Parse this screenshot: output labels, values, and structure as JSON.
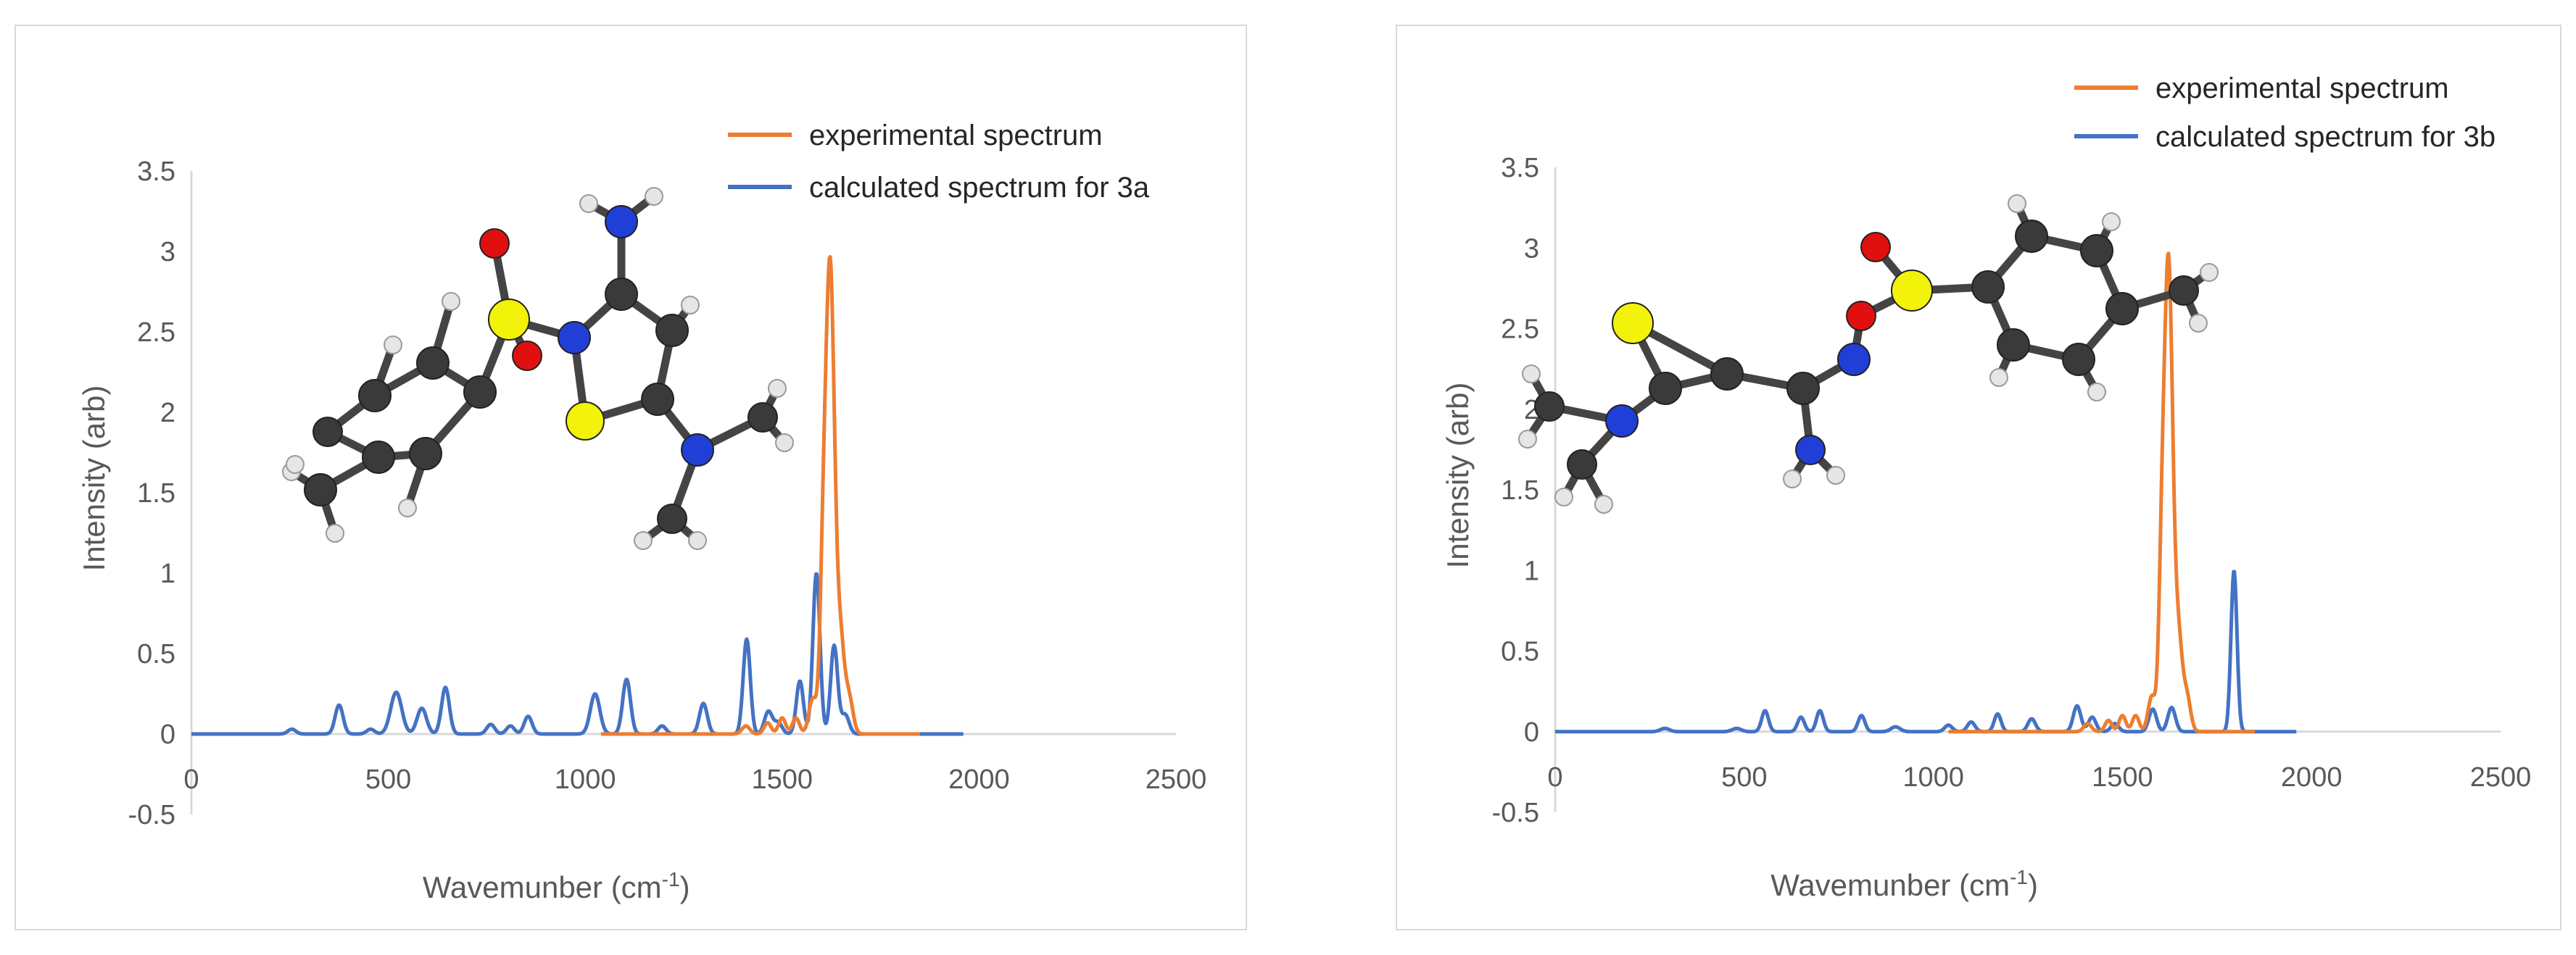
{
  "colors": {
    "experimental": "#ed7d31",
    "calculated": "#4472c4",
    "axis": "#d9d9d9",
    "carbon": "#3a3a3a",
    "nitrogen": "#1f3fd6",
    "sulfur": "#f2f20a",
    "oxygen": "#e01010",
    "hydrogen": "#e6e6e6"
  },
  "chart_data": [
    {
      "type": "line",
      "panel": "a",
      "xlabel": "Wavemunber (cm",
      "xlabel_sup": "-1",
      "xlabel_close": ")",
      "ylabel": "Intensity (arb)",
      "xlim": [
        0,
        2500
      ],
      "ylim": [
        -0.5,
        3.5
      ],
      "x_ticks": [
        "0",
        "500",
        "1000",
        "1500",
        "2000",
        "2500"
      ],
      "y_ticks": [
        "-0.5",
        "0",
        "0.5",
        "1",
        "1.5",
        "2",
        "2.5",
        "3",
        "3.5"
      ],
      "legend": [
        "experimental spectrum",
        "calculated spectrum for 3a"
      ],
      "series": [
        {
          "name": "experimental spectrum",
          "range": [
            1040,
            1850
          ],
          "peaks": [
            [
              1408,
              0.05,
              10
            ],
            [
              1463,
              0.07,
              9
            ],
            [
              1500,
              0.1,
              9
            ],
            [
              1535,
              0.1,
              9
            ],
            [
              1578,
              0.22,
              10
            ],
            [
              1604,
              0.85,
              8
            ],
            [
              1622,
              2.88,
              11
            ],
            [
              1648,
              0.55,
              10
            ],
            [
              1670,
              0.22,
              10
            ]
          ]
        },
        {
          "name": "calculated spectrum for 3a",
          "range": [
            0,
            1960
          ],
          "peaks": [
            [
              255,
              0.03,
              10
            ],
            [
              375,
              0.18,
              10
            ],
            [
              455,
              0.03,
              10
            ],
            [
              520,
              0.26,
              14
            ],
            [
              585,
              0.16,
              12
            ],
            [
              645,
              0.29,
              10
            ],
            [
              760,
              0.06,
              10
            ],
            [
              810,
              0.05,
              10
            ],
            [
              855,
              0.11,
              10
            ],
            [
              1025,
              0.25,
              12
            ],
            [
              1105,
              0.34,
              10
            ],
            [
              1195,
              0.05,
              10
            ],
            [
              1300,
              0.19,
              10
            ],
            [
              1410,
              0.59,
              9
            ],
            [
              1465,
              0.14,
              10
            ],
            [
              1490,
              0.07,
              10
            ],
            [
              1545,
              0.33,
              9
            ],
            [
              1587,
              1.0,
              9
            ],
            [
              1632,
              0.55,
              9
            ],
            [
              1660,
              0.12,
              10
            ]
          ]
        }
      ]
    },
    {
      "type": "line",
      "panel": "b",
      "xlabel": "Wavemunber (cm",
      "xlabel_sup": "-1",
      "xlabel_close": ")",
      "ylabel": "Intensity (arb)",
      "xlim": [
        0,
        2500
      ],
      "ylim": [
        -0.5,
        3.5
      ],
      "x_ticks": [
        "0",
        "500",
        "1000",
        "1500",
        "2000",
        "2500"
      ],
      "y_ticks": [
        "-0.5",
        "0",
        "0.5",
        "1",
        "1.5",
        "2",
        "2.5",
        "3",
        "3.5"
      ],
      "legend": [
        "experimental spectrum",
        "calculated spectrum for 3b"
      ],
      "series": [
        {
          "name": "experimental spectrum",
          "range": [
            1040,
            1850
          ],
          "peaks": [
            [
              1408,
              0.05,
              10
            ],
            [
              1463,
              0.07,
              9
            ],
            [
              1500,
              0.1,
              9
            ],
            [
              1535,
              0.1,
              9
            ],
            [
              1578,
              0.22,
              10
            ],
            [
              1604,
              0.85,
              8
            ],
            [
              1622,
              2.88,
              11
            ],
            [
              1648,
              0.55,
              10
            ],
            [
              1670,
              0.22,
              10
            ]
          ]
        },
        {
          "name": "calculated spectrum for 3b",
          "range": [
            0,
            1960
          ],
          "peaks": [
            [
              290,
              0.02,
              12
            ],
            [
              480,
              0.02,
              12
            ],
            [
              555,
              0.13,
              9
            ],
            [
              650,
              0.09,
              9
            ],
            [
              700,
              0.13,
              9
            ],
            [
              810,
              0.1,
              9
            ],
            [
              900,
              0.03,
              12
            ],
            [
              1040,
              0.04,
              10
            ],
            [
              1100,
              0.06,
              10
            ],
            [
              1170,
              0.11,
              9
            ],
            [
              1260,
              0.08,
              10
            ],
            [
              1380,
              0.16,
              10
            ],
            [
              1420,
              0.09,
              10
            ],
            [
              1480,
              0.05,
              10
            ],
            [
              1580,
              0.14,
              10
            ],
            [
              1630,
              0.15,
              10
            ],
            [
              1795,
              1.0,
              8
            ]
          ]
        }
      ]
    }
  ]
}
